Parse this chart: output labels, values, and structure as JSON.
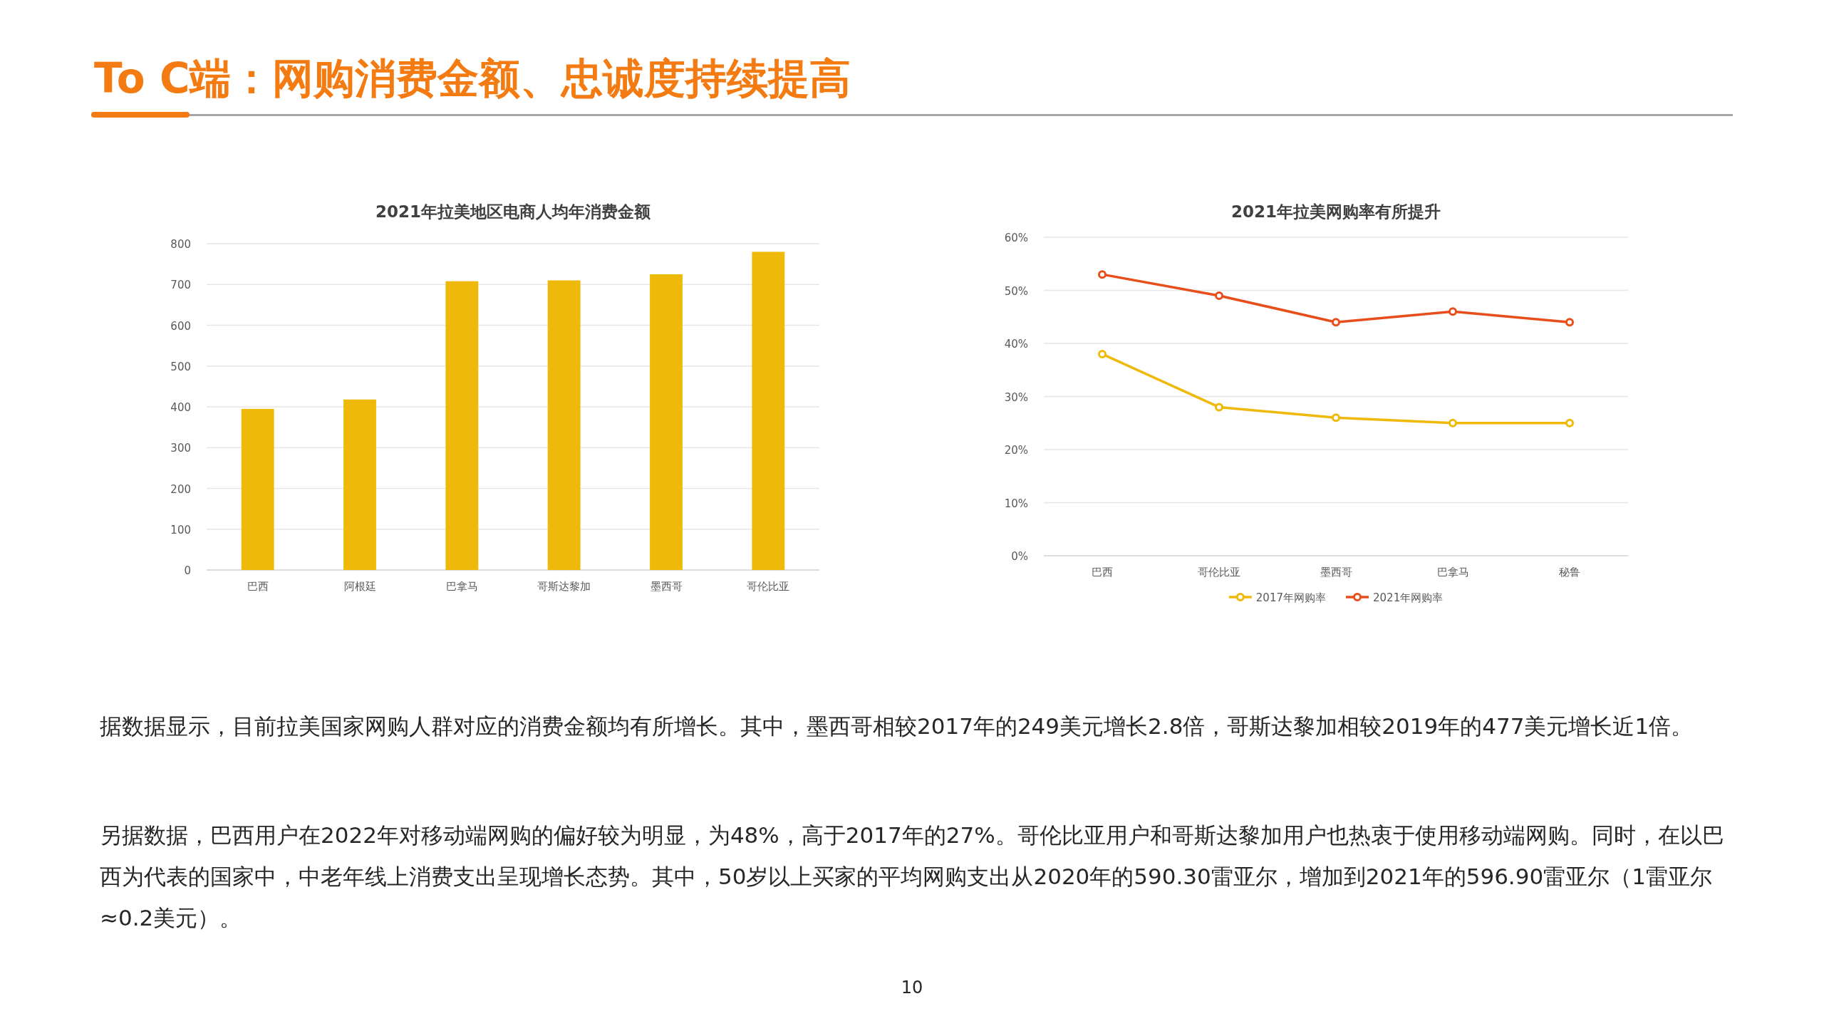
{
  "chart_data": [
    {
      "type": "bar",
      "title": "2021年拉美地区电商人均年消费金额",
      "categories": [
        "巴西",
        "阿根廷",
        "巴拿马",
        "哥斯达黎加",
        "墨西哥",
        "哥伦比亚"
      ],
      "values": [
        395,
        418,
        708,
        710,
        725,
        780
      ],
      "color": "#efb90a",
      "ylim": [
        0,
        800
      ],
      "yticks": [
        0,
        100,
        200,
        300,
        400,
        500,
        600,
        700,
        800
      ],
      "grid": "y"
    },
    {
      "type": "line",
      "title": "2021年拉美网购率有所提升",
      "categories": [
        "巴西",
        "哥伦比亚",
        "墨西哥",
        "巴拿马",
        "秘鲁"
      ],
      "series": [
        {
          "name": "2017年网购率",
          "color": "#efb90a",
          "values": [
            38,
            28,
            26,
            25,
            25
          ]
        },
        {
          "name": "2021年网购率",
          "color": "#e84e1b",
          "values": [
            53,
            49,
            44,
            46,
            44
          ]
        }
      ],
      "ylim": [
        0,
        60
      ],
      "yticks": [
        {
          "value": 0,
          "label": "0%"
        },
        {
          "value": 10,
          "label": "10%"
        },
        {
          "value": 20,
          "label": "20%"
        },
        {
          "value": 30,
          "label": "30%"
        },
        {
          "value": 40,
          "label": "40%"
        },
        {
          "value": 50,
          "label": "50%"
        },
        {
          "value": 60,
          "label": "60%"
        }
      ],
      "grid": "y",
      "legend": "bottom",
      "marker": "circle"
    },
    {
      "type": "other",
      "title": "To C端：网购消费金额、忠诚度持续提高",
      "annotations": [
        "据数据显示，目前拉美国家网购人群对应的消费金额均有所增长。其中，墨西哥相较2017年的249美元增长2.8倍，哥斯达黎加相较2019年的477美元增长近1倍。",
        "另据数据，巴西用户在2022年对移动端网购的偏好较为明显，为48%，高于2017年的27%。哥伦比亚用户和哥斯达黎加用户也热衷于使用移动端网购。同时，在以巴西为代表的国家中，中老年线上消费支出呈现增长态势。其中，50岁以上买家的平均网购支出从2020年的590.30雷亚尔，增加到2021年的596.90雷亚尔（1雷亚尔≈0.2美元）。",
        "10"
      ]
    }
  ]
}
